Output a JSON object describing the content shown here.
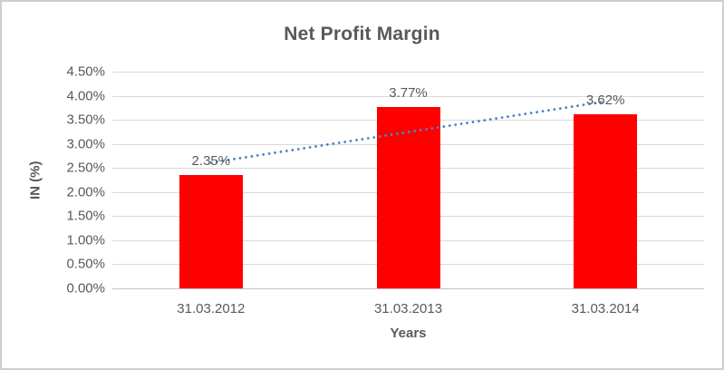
{
  "chart": {
    "background": "#ffffff",
    "border_color": "#cfcfcf",
    "text_color": "#595959",
    "gridline_color": "#d9d9d9",
    "axis_line_color": "#c3c3c3"
  },
  "chart_data": {
    "type": "bar",
    "title": "Net Profit Margin",
    "xlabel": "Years",
    "ylabel": "IN (%)",
    "categories": [
      "31.03.2012",
      "31.03.2013",
      "31.03.2014"
    ],
    "values": [
      2.35,
      3.77,
      3.62
    ],
    "data_labels": [
      "2.35%",
      "3.77%",
      "3.62%"
    ],
    "bar_color": "#ff0000",
    "ylim": [
      0,
      4.5
    ],
    "yticks": [
      0,
      0.5,
      1,
      1.5,
      2,
      2.5,
      3,
      3.5,
      4,
      4.5
    ],
    "ytick_labels": [
      "0.00%",
      "0.50%",
      "1.00%",
      "1.50%",
      "2.00%",
      "2.50%",
      "3.00%",
      "3.50%",
      "4.00%",
      "4.50%"
    ],
    "grid": true,
    "legend": "none",
    "trendline": {
      "type": "linear",
      "style": "dotted",
      "color": "#4a86c8",
      "start_value": 2.61,
      "end_value": 3.88
    }
  }
}
